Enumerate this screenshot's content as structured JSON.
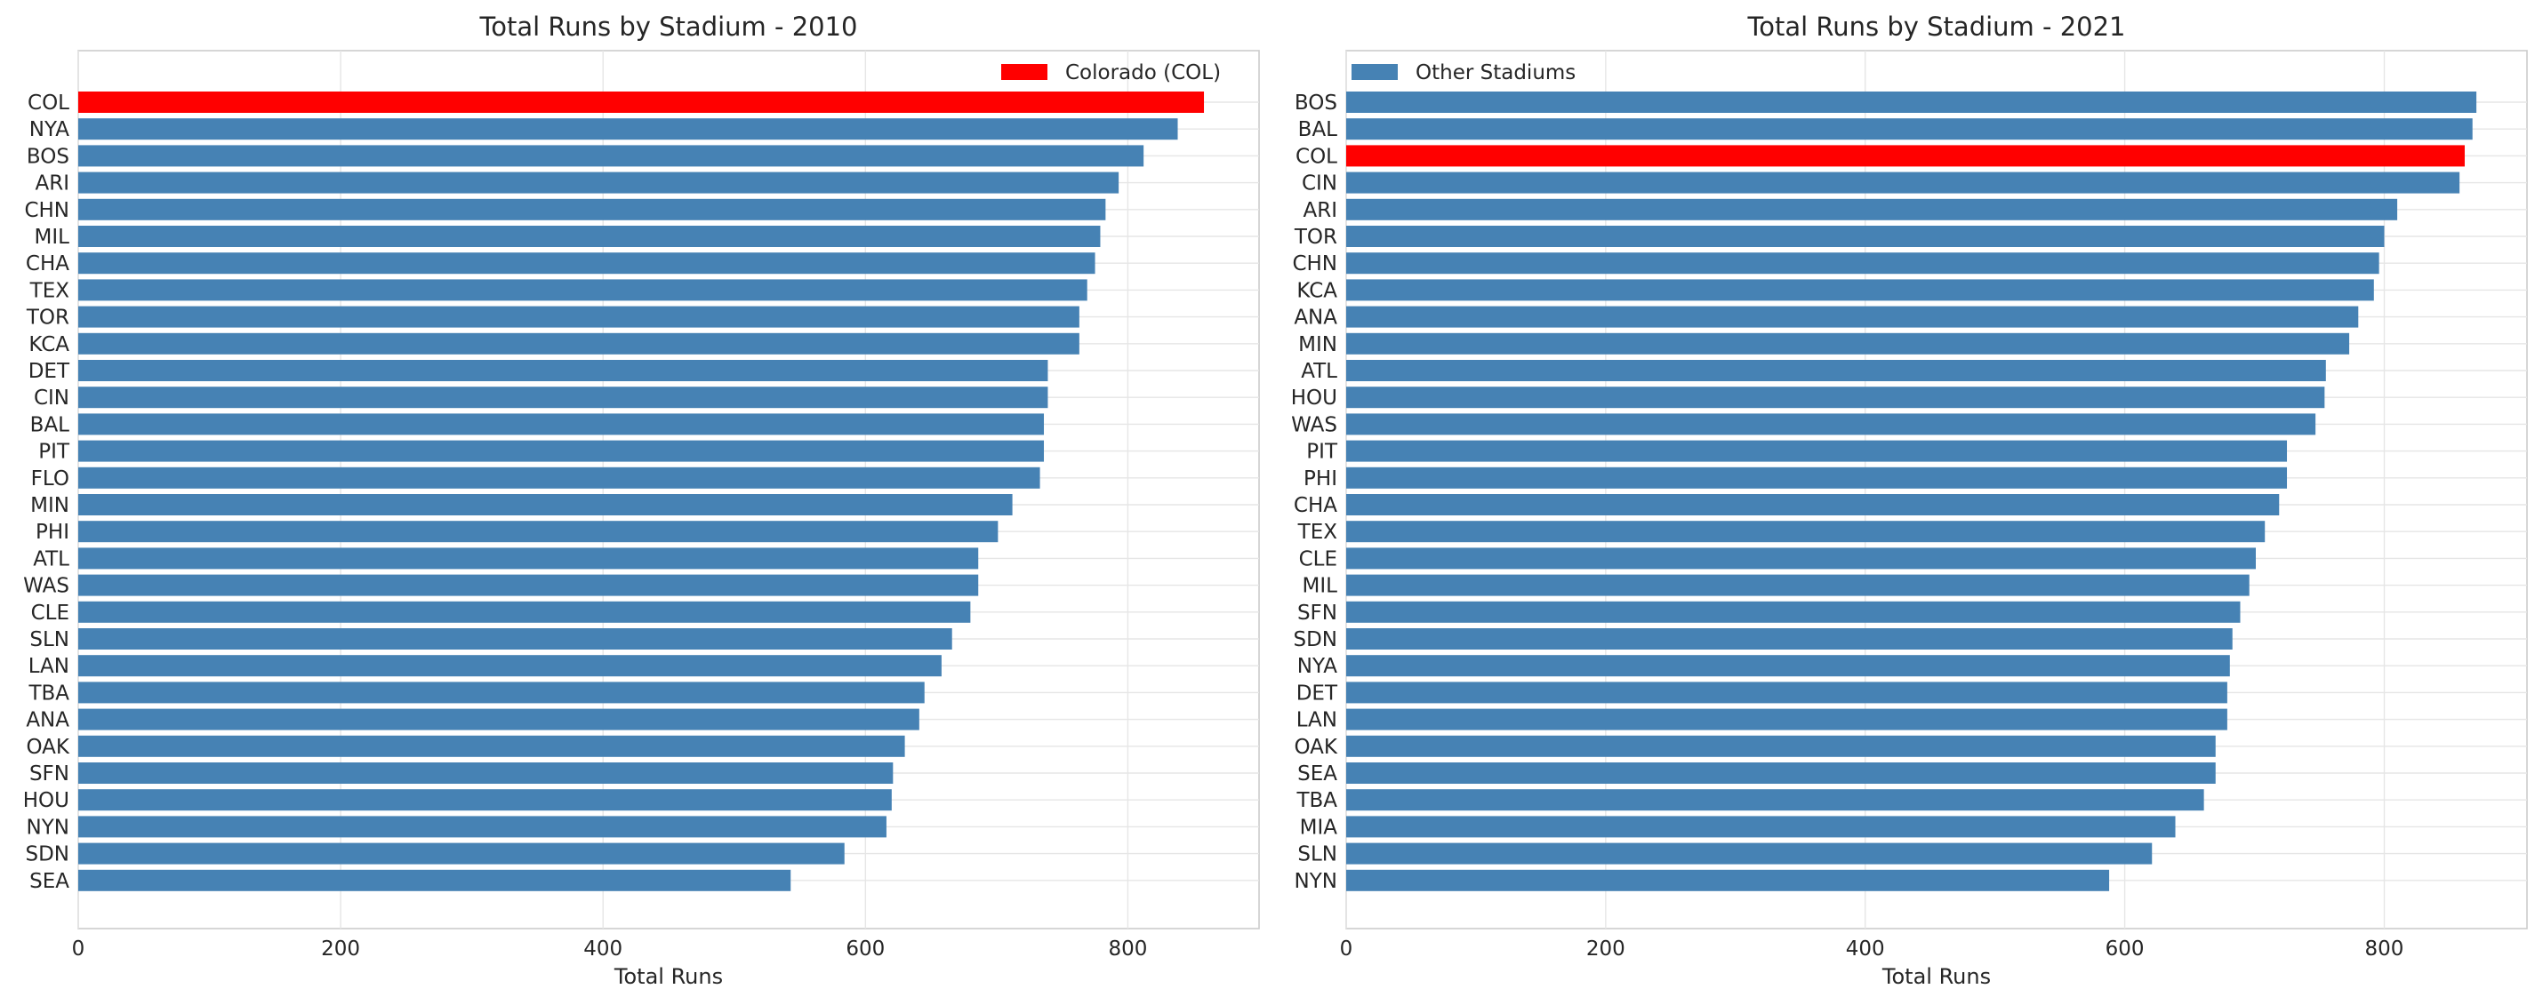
{
  "colors": {
    "default_bar": "#4682b4",
    "highlight_bar": "#ff0000",
    "highlight_category": "COL"
  },
  "chart_data": [
    {
      "type": "bar",
      "orientation": "horizontal",
      "title": "Total Runs by Stadium - 2010",
      "xlabel": "Total Runs",
      "ylabel": "",
      "xlim": [
        0,
        900
      ],
      "xticks": [
        0,
        200,
        400,
        600,
        800
      ],
      "grid": true,
      "legend": {
        "placement": "top-right",
        "label": "Colorado (COL)",
        "color": "#ff0000"
      },
      "categories": [
        "COL",
        "NYA",
        "BOS",
        "ARI",
        "CHN",
        "MIL",
        "CHA",
        "TEX",
        "TOR",
        "KCA",
        "DET",
        "CIN",
        "BAL",
        "PIT",
        "FLO",
        "MIN",
        "PHI",
        "ATL",
        "WAS",
        "CLE",
        "SLN",
        "LAN",
        "TBA",
        "ANA",
        "OAK",
        "SFN",
        "HOU",
        "NYN",
        "SDN",
        "SEA"
      ],
      "values": [
        858,
        838,
        812,
        793,
        783,
        779,
        775,
        769,
        763,
        763,
        739,
        739,
        736,
        736,
        733,
        712,
        701,
        686,
        686,
        680,
        666,
        658,
        645,
        641,
        630,
        621,
        620,
        616,
        584,
        543
      ]
    },
    {
      "type": "bar",
      "orientation": "horizontal",
      "title": "Total Runs by Stadium - 2021",
      "xlabel": "Total Runs",
      "ylabel": "",
      "xlim": [
        0,
        910
      ],
      "xticks": [
        0,
        200,
        400,
        600,
        800
      ],
      "grid": true,
      "legend": {
        "placement": "top-left",
        "label": "Other Stadiums",
        "color": "#4682b4"
      },
      "categories": [
        "BOS",
        "BAL",
        "COL",
        "CIN",
        "ARI",
        "TOR",
        "CHN",
        "KCA",
        "ANA",
        "MIN",
        "ATL",
        "HOU",
        "WAS",
        "PIT",
        "PHI",
        "CHA",
        "TEX",
        "CLE",
        "MIL",
        "SFN",
        "SDN",
        "NYA",
        "DET",
        "LAN",
        "OAK",
        "SEA",
        "TBA",
        "MIA",
        "SLN",
        "NYN"
      ],
      "values": [
        871,
        868,
        862,
        858,
        810,
        800,
        796,
        792,
        780,
        773,
        755,
        754,
        747,
        725,
        725,
        719,
        708,
        701,
        696,
        689,
        683,
        681,
        679,
        679,
        670,
        670,
        661,
        639,
        621,
        588
      ]
    }
  ]
}
